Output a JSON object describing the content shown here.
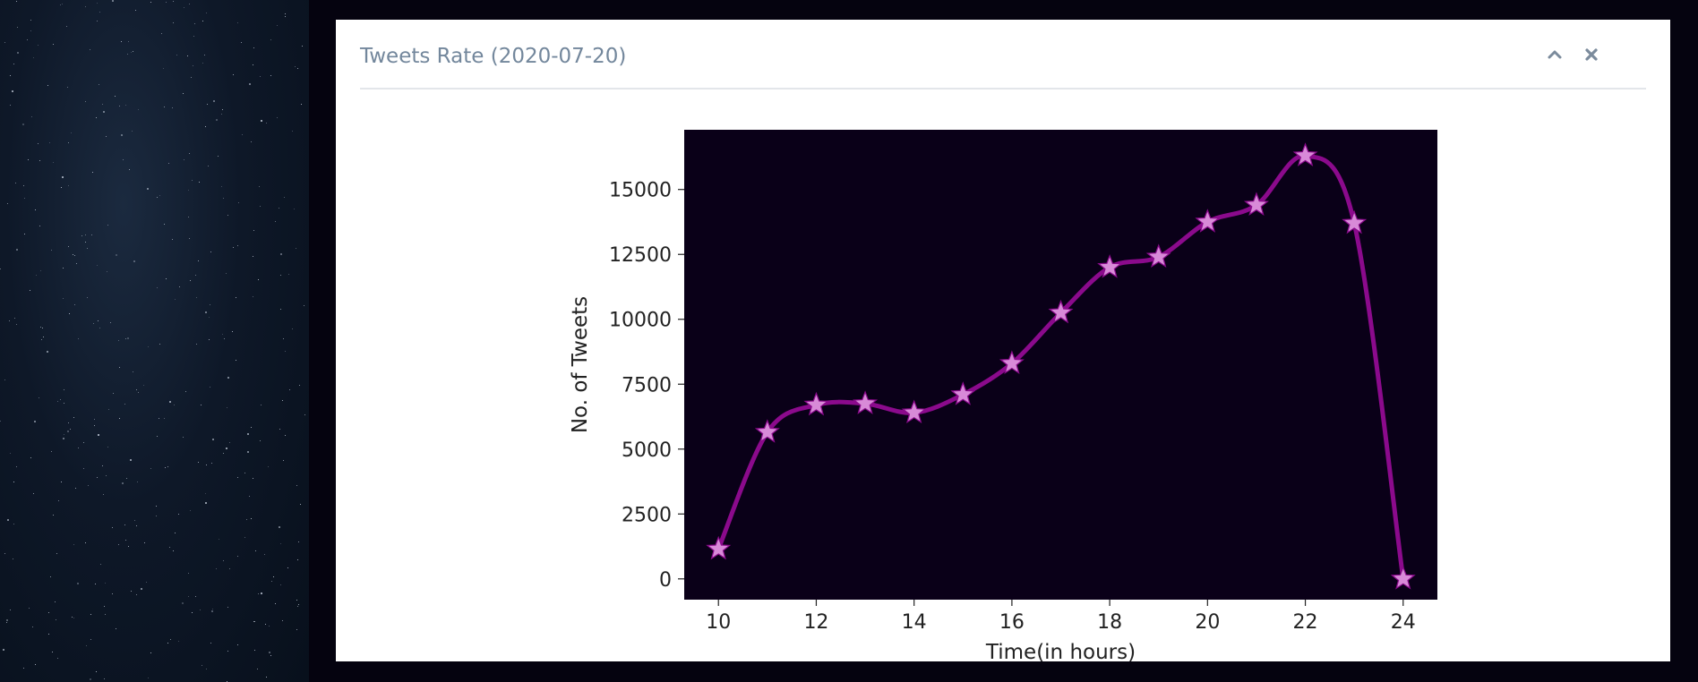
{
  "panel": {
    "title": "Tweets Rate (2020-07-20)",
    "tools": [
      {
        "icon": "chevron-up-icon"
      },
      {
        "icon": "close-icon"
      }
    ]
  },
  "colors": {
    "plot_bg": "#0a0018",
    "line": "#8b0a8c",
    "marker": "#d88ad8",
    "axis_text": "#222222"
  },
  "chart_data": {
    "type": "line",
    "xlabel": "Time(in hours)",
    "ylabel": "No. of Tweets",
    "xlim": [
      9.3,
      24.7
    ],
    "ylim": [
      -800,
      17300
    ],
    "x_ticks": [
      10,
      12,
      14,
      16,
      18,
      20,
      22,
      24
    ],
    "y_ticks": [
      0,
      2500,
      5000,
      7500,
      10000,
      12500,
      15000
    ],
    "grid": false,
    "smooth": true,
    "marker": "star",
    "series": [
      {
        "x": [
          10,
          11,
          12,
          13,
          14,
          15,
          16,
          17,
          18,
          19,
          20,
          21,
          22,
          23,
          24
        ],
        "values": [
          1150,
          5650,
          6700,
          6750,
          6400,
          7100,
          8300,
          10250,
          12000,
          12400,
          13750,
          14400,
          16300,
          13700,
          0
        ]
      }
    ]
  }
}
